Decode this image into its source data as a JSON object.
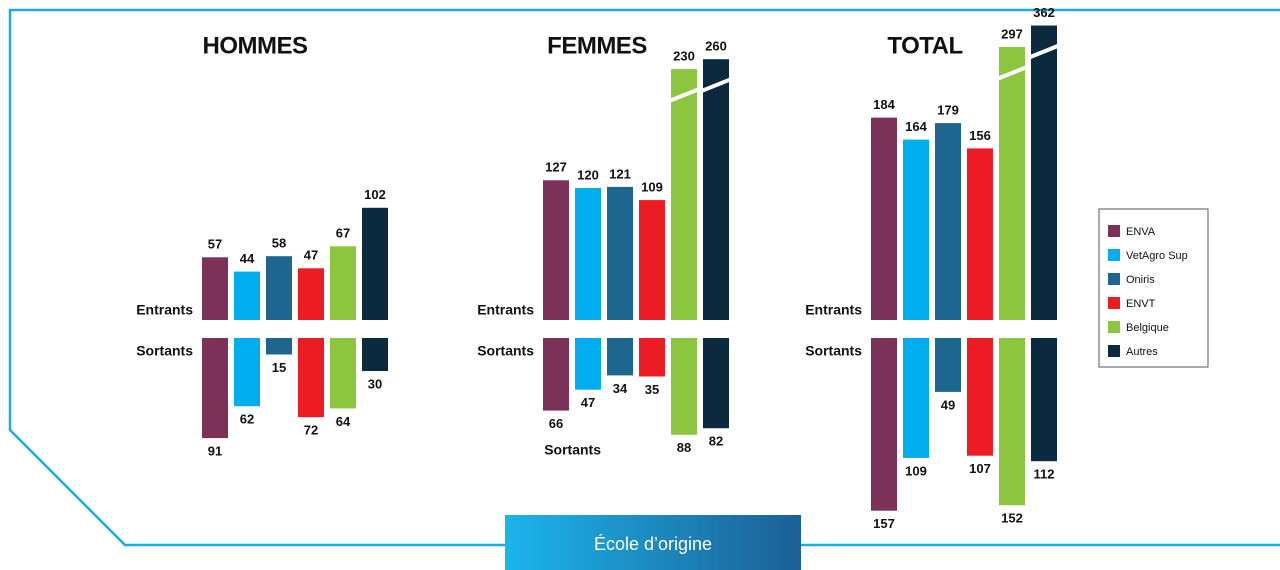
{
  "chart_data": [
    {
      "type": "bar",
      "title": "HOMMES",
      "categories": [
        "ENVA",
        "VetAgro Sup",
        "Oniris",
        "ENVT",
        "Belgique",
        "Autres"
      ],
      "colors": [
        "#7b3158",
        "#00adef",
        "#1c6690",
        "#ed1c24",
        "#8cc63f",
        "#0b2a40"
      ],
      "series": [
        {
          "name": "Entrants",
          "values": [
            57,
            44,
            58,
            47,
            67,
            102
          ]
        },
        {
          "name": "Sortants",
          "values": [
            91,
            62,
            15,
            72,
            64,
            30
          ]
        }
      ]
    },
    {
      "type": "bar",
      "title": "FEMMES",
      "categories": [
        "ENVA",
        "VetAgro Sup",
        "Oniris",
        "ENVT",
        "Belgique",
        "Autres"
      ],
      "colors": [
        "#7b3158",
        "#00adef",
        "#1c6690",
        "#ed1c24",
        "#8cc63f",
        "#0b2a40"
      ],
      "series": [
        {
          "name": "Entrants",
          "values": [
            127,
            120,
            121,
            109,
            230,
            260
          ]
        },
        {
          "name": "Sortants",
          "values": [
            66,
            47,
            34,
            35,
            88,
            82
          ]
        }
      ]
    },
    {
      "type": "bar",
      "title": "TOTAL",
      "categories": [
        "ENVA",
        "VetAgro Sup",
        "Oniris",
        "ENVT",
        "Belgique",
        "Autres"
      ],
      "colors": [
        "#7b3158",
        "#00adef",
        "#1c6690",
        "#ed1c24",
        "#8cc63f",
        "#0b2a40"
      ],
      "series": [
        {
          "name": "Entrants",
          "values": [
            184,
            164,
            179,
            156,
            297,
            362
          ]
        },
        {
          "name": "Sortants",
          "values": [
            157,
            109,
            49,
            107,
            152,
            112
          ]
        }
      ]
    }
  ],
  "footer": "École d’origine"
}
